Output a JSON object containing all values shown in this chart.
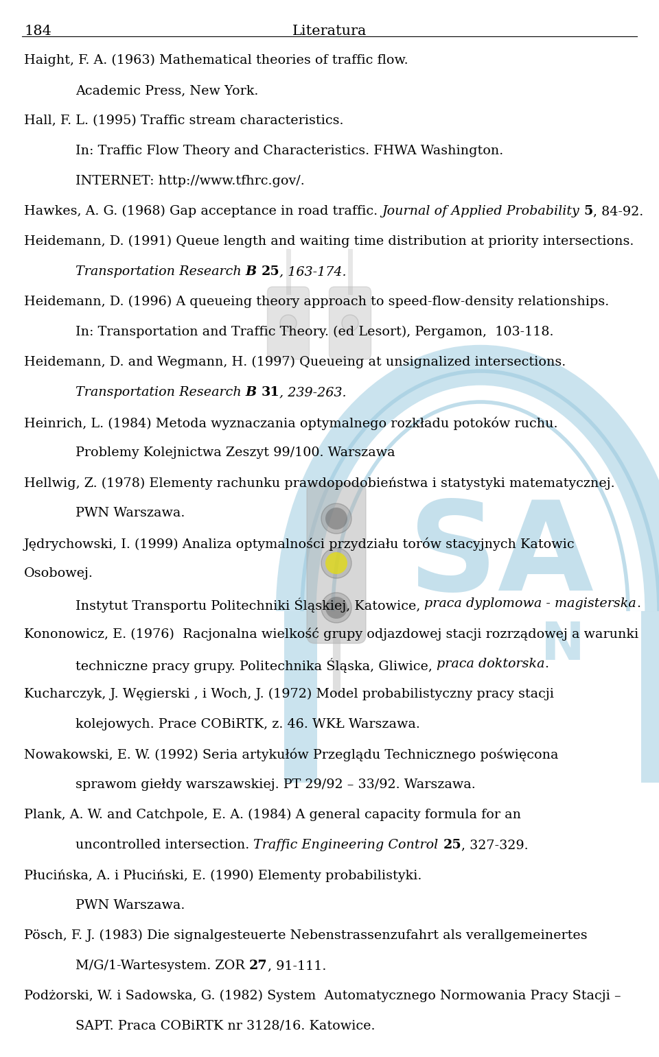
{
  "page_number": "184",
  "page_title": "Literatura",
  "background_color": "#ffffff",
  "text_color": "#000000",
  "entries": [
    {
      "type": "normal",
      "indent": false,
      "text": "Haight, F. A. (1963) Mathematical theories of traffic flow."
    },
    {
      "type": "normal",
      "indent": true,
      "text": "Academic Press, New York."
    },
    {
      "type": "normal",
      "indent": false,
      "text": "Hall, F. L. (1995) Traffic stream characteristics."
    },
    {
      "type": "normal",
      "indent": true,
      "text": "In: Traffic Flow Theory and Characteristics. FHWA Washington."
    },
    {
      "type": "normal",
      "indent": true,
      "text": "INTERNET: http://www.tfhrc.gov/."
    },
    {
      "type": "mixed",
      "indent": false,
      "parts": [
        {
          "text": "Hawkes, A. G. (1968) Gap acceptance in road traffic. ",
          "style": "normal"
        },
        {
          "text": "Journal of Applied Probability",
          "style": "italic"
        },
        {
          "text": " ",
          "style": "bold"
        },
        {
          "text": "5",
          "style": "bold"
        },
        {
          "text": ", 84-92.",
          "style": "normal"
        }
      ]
    },
    {
      "type": "normal",
      "indent": false,
      "text": "Heidemann, D. (1991) Queue length and waiting time distribution at priority intersections."
    },
    {
      "type": "mixed",
      "indent": true,
      "parts": [
        {
          "text": "Transportation Research ",
          "style": "italic"
        },
        {
          "text": "B",
          "style": "bold-italic"
        },
        {
          "text": " ",
          "style": "bold"
        },
        {
          "text": "25",
          "style": "bold"
        },
        {
          "text": ", 163-174.",
          "style": "italic"
        }
      ]
    },
    {
      "type": "normal",
      "indent": false,
      "text": "Heidemann, D. (1996) A queueing theory approach to speed-flow-density relationships."
    },
    {
      "type": "normal",
      "indent": true,
      "text": "In: Transportation and Traffic Theory. (ed Lesort), Pergamon,  103-118."
    },
    {
      "type": "normal",
      "indent": false,
      "text": "Heidemann, D. and Wegmann, H. (1997) Queueing at unsignalized intersections."
    },
    {
      "type": "mixed",
      "indent": true,
      "parts": [
        {
          "text": "Transportation Research ",
          "style": "italic"
        },
        {
          "text": "B",
          "style": "bold-italic"
        },
        {
          "text": " ",
          "style": "bold"
        },
        {
          "text": "31",
          "style": "bold"
        },
        {
          "text": ", 239-263.",
          "style": "italic"
        }
      ]
    },
    {
      "type": "normal",
      "indent": false,
      "text": "Heinrich, L. (1984) Metoda wyznaczania optymalnego rozkładu potoków ruchu."
    },
    {
      "type": "normal",
      "indent": true,
      "text": "Problemy Kolejnictwa Zeszyt 99/100. Warszawa"
    },
    {
      "type": "normal",
      "indent": false,
      "text": "Hellwig, Z. (1978) Elementy rachunku prawdopodobieństwa i statystyki matematycznej."
    },
    {
      "type": "normal",
      "indent": true,
      "text": "PWN Warszawa."
    },
    {
      "type": "normal",
      "indent": false,
      "text": "Jędrychowski, I. (1999) Analiza optymalności przydziału torów stacyjnych Katowic"
    },
    {
      "type": "normal",
      "indent": false,
      "text": "Osobowej."
    },
    {
      "type": "mixed",
      "indent": true,
      "parts": [
        {
          "text": "Instytut Transportu Politechniki Śląskiej, Katowice, ",
          "style": "normal"
        },
        {
          "text": "praca dyplomowa - magisterska",
          "style": "italic"
        },
        {
          "text": ".",
          "style": "normal"
        }
      ]
    },
    {
      "type": "normal",
      "indent": false,
      "text": "Kononowicz, E. (1976)  Racjonalna wielkość grupy odjazdowej stacji rozrządowej a warunki"
    },
    {
      "type": "mixed",
      "indent": true,
      "parts": [
        {
          "text": "techniczne pracy grupy. Politechnika Śląska, Gliwice, ",
          "style": "normal"
        },
        {
          "text": "praca doktorska",
          "style": "italic"
        },
        {
          "text": ".",
          "style": "normal"
        }
      ]
    },
    {
      "type": "normal",
      "indent": false,
      "text": "Kucharczyk, J. Węgierski , i Woch, J. (1972) Model probabilistyczny pracy stacji"
    },
    {
      "type": "normal",
      "indent": true,
      "text": "kolejowych. Prace COBiRTK, z. 46. WKŁ Warszawa."
    },
    {
      "type": "normal",
      "indent": false,
      "text": "Nowakowski, E. W. (1992) Seria artykułów Przeglądu Technicznego poświęcona"
    },
    {
      "type": "normal",
      "indent": true,
      "text": "sprawom giełdy warszawskiej. PT 29/92 – 33/92. Warszawa."
    },
    {
      "type": "normal",
      "indent": false,
      "text": "Plank, A. W. and Catchpole, E. A. (1984) A general capacity formula for an"
    },
    {
      "type": "mixed",
      "indent": true,
      "parts": [
        {
          "text": "uncontrolled intersection. ",
          "style": "normal"
        },
        {
          "text": "Traffic Engineering Control",
          "style": "italic"
        },
        {
          "text": " ",
          "style": "bold"
        },
        {
          "text": "25",
          "style": "bold"
        },
        {
          "text": ", 327-329.",
          "style": "normal"
        }
      ]
    },
    {
      "type": "normal",
      "indent": false,
      "text": "Płucińska, A. i Płuciński, E. (1990) Elementy probabilistyki."
    },
    {
      "type": "normal",
      "indent": true,
      "text": "PWN Warszawa."
    },
    {
      "type": "normal",
      "indent": false,
      "text": "Pösch, F. J. (1983) Die signalgesteuerte Nebenstrassenzufahrt als verallgemeinertes"
    },
    {
      "type": "mixed",
      "indent": true,
      "parts": [
        {
          "text": "M/G/1-Wartesystem. ZOR ",
          "style": "normal"
        },
        {
          "text": "27",
          "style": "bold"
        },
        {
          "text": ", 91-111.",
          "style": "normal"
        }
      ]
    },
    {
      "type": "normal",
      "indent": false,
      "text": "Podżorski, W. i Sadowska, G. (1982) System  Automatycznego Normowania Pracy Stacji –"
    },
    {
      "type": "normal",
      "indent": true,
      "text": "SAPT. Praca COBiRTK nr 3128/16. Katowice."
    }
  ]
}
